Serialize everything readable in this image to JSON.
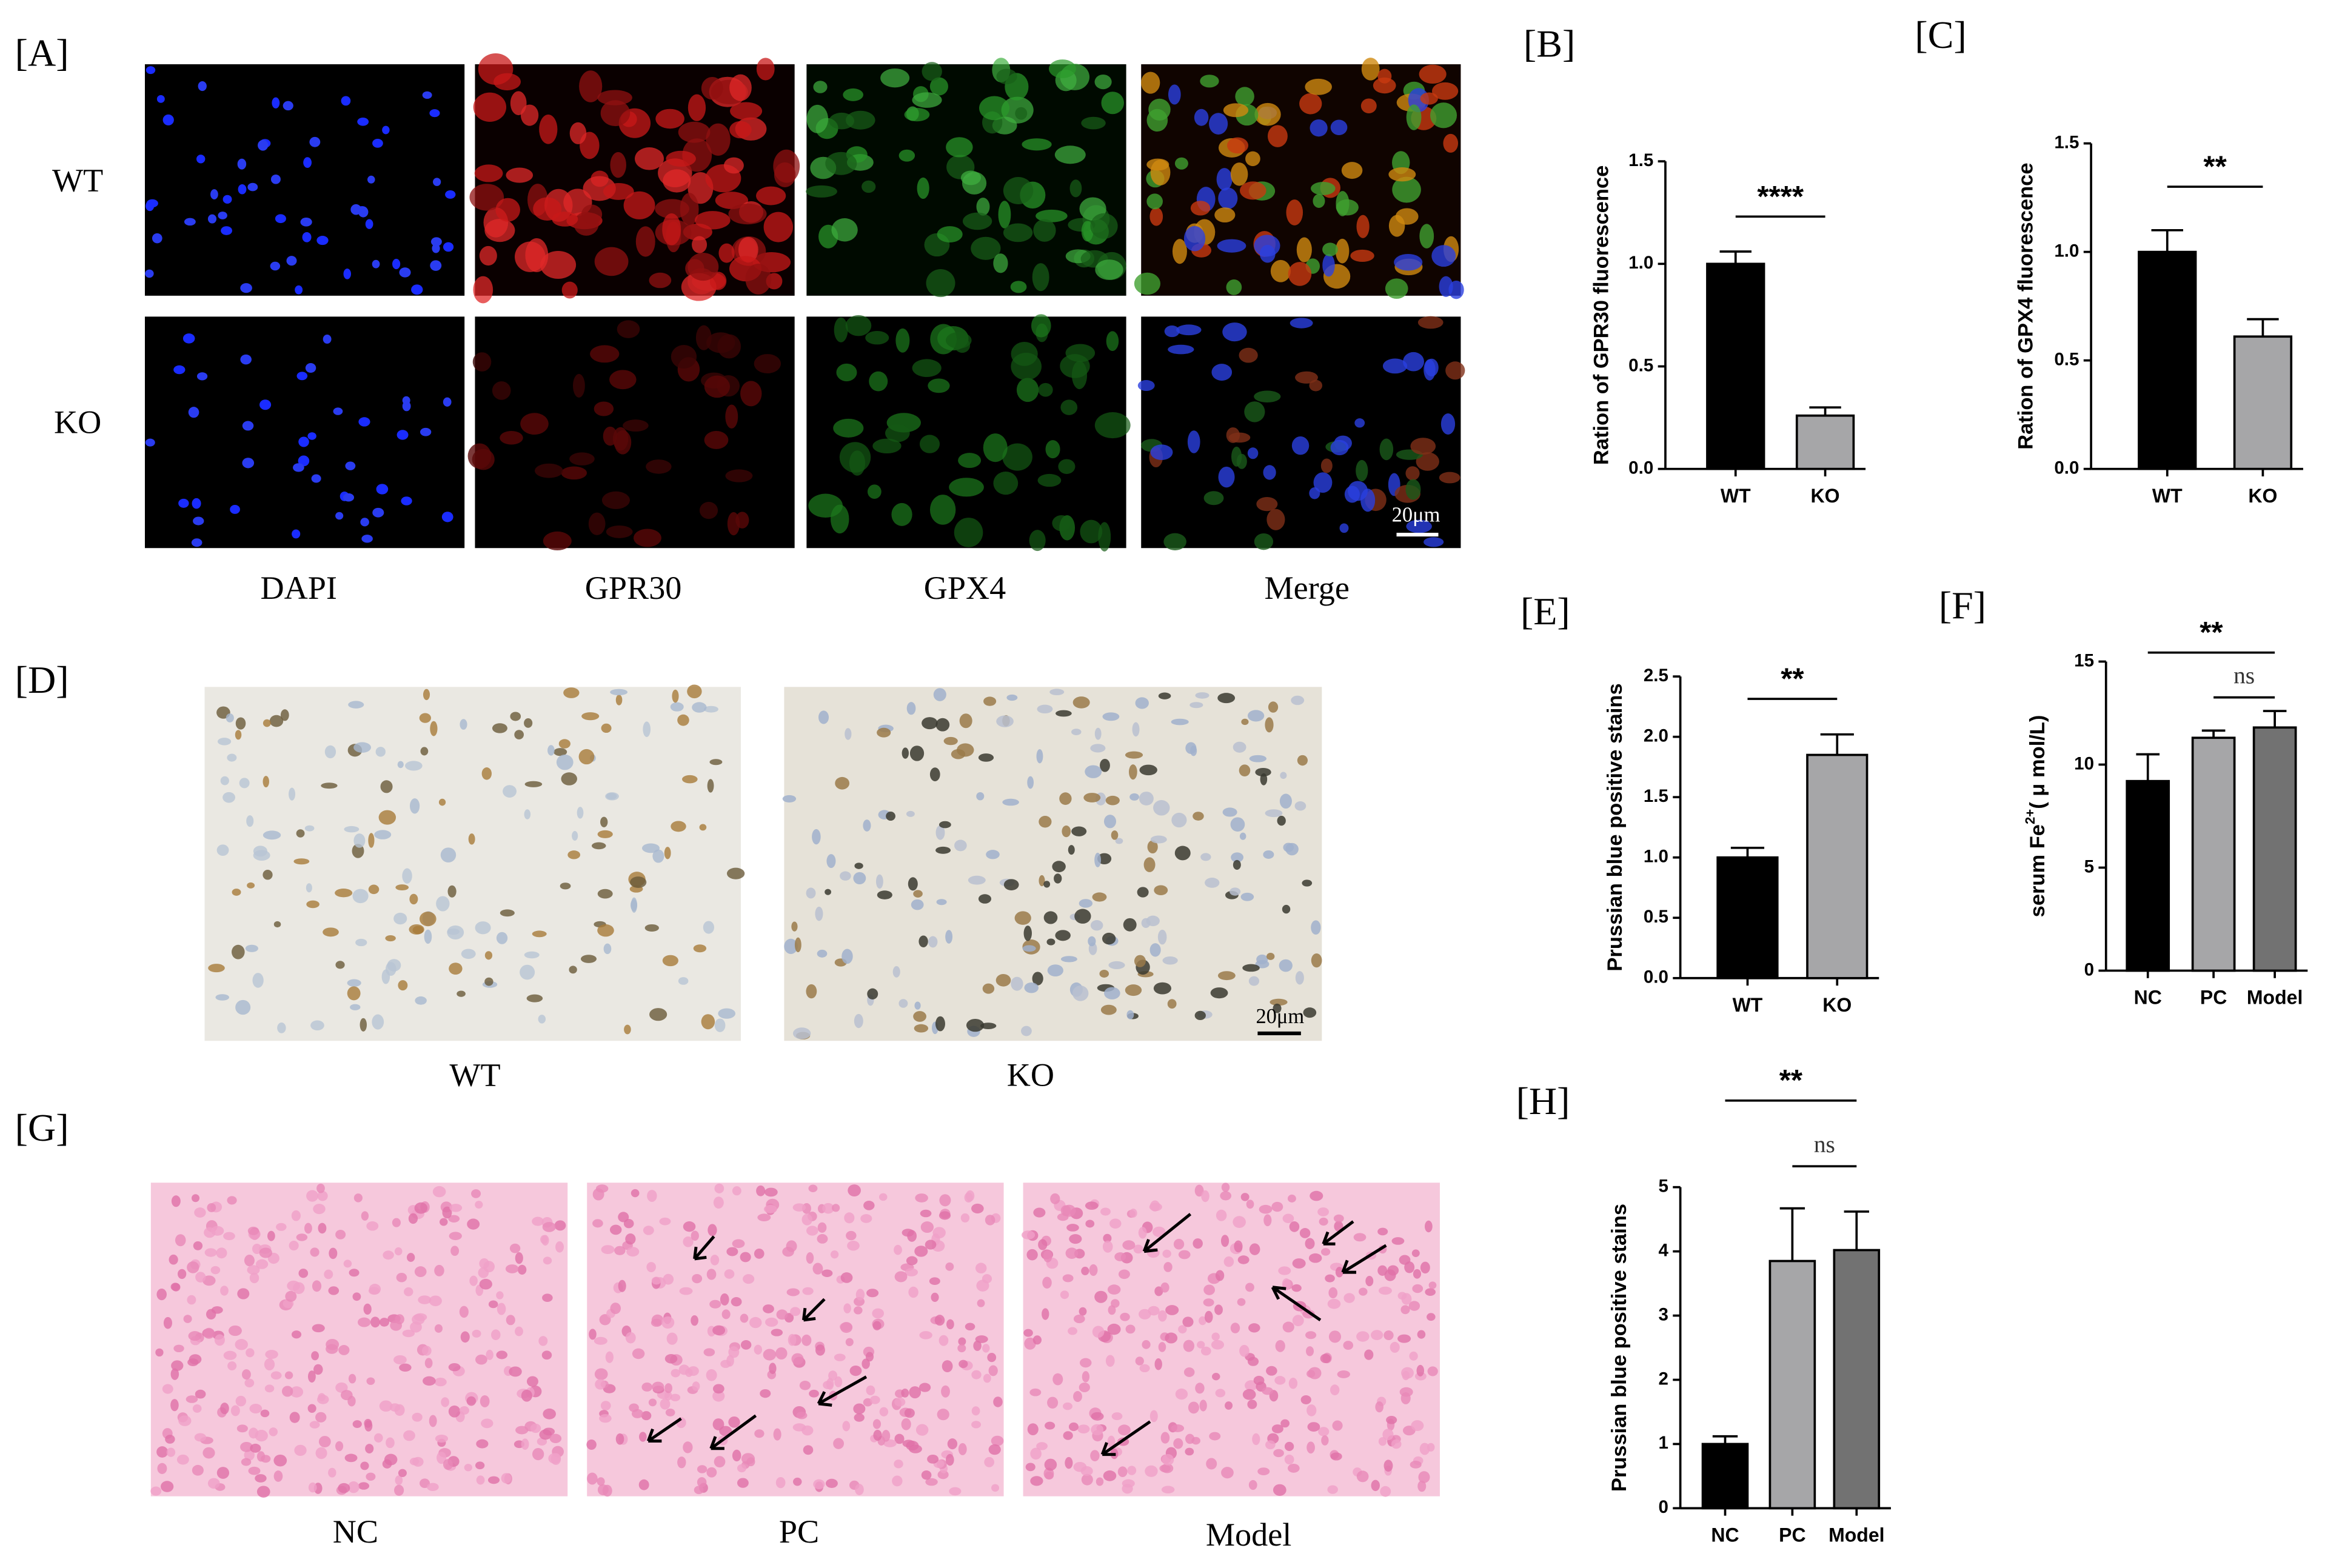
{
  "figure": {
    "A": {
      "label": "[A]",
      "rows": [
        "WT",
        "KO"
      ],
      "columns": [
        "DAPI",
        "GPR30",
        "GPX4",
        "Merge"
      ],
      "scale": "20μm"
    },
    "D": {
      "label": "[D]",
      "captions": [
        "WT",
        "KO"
      ],
      "scale": "20μm"
    },
    "G": {
      "label": "[G]",
      "captions": [
        "NC",
        "PC",
        "Model"
      ]
    }
  },
  "chart_data": [
    {
      "type": "bar",
      "panel": "[B]",
      "ylabel": "Ration of GPR30 fluorescence",
      "categories": [
        "WT",
        "KO"
      ],
      "values": [
        1.0,
        0.26
      ],
      "errors": [
        0.06,
        0.04
      ],
      "colors": [
        "#000000",
        "#a6a6a8"
      ],
      "ylim": [
        0,
        1.5
      ],
      "yticks": [
        {
          "value": 0,
          "label": "0.0"
        },
        0.5,
        {
          "value": 1,
          "label": "1.0"
        },
        1.5
      ],
      "annotations": [
        "****"
      ]
    },
    {
      "type": "bar",
      "panel": "[C]",
      "ylabel": "Ration of GPX4 fluorescence",
      "categories": [
        "WT",
        "KO"
      ],
      "values": [
        1.0,
        0.61
      ],
      "errors": [
        0.1,
        0.08
      ],
      "colors": [
        "#000000",
        "#a6a6a8"
      ],
      "ylim": [
        0,
        1.5
      ],
      "yticks": [
        {
          "value": 0,
          "label": "0.0"
        },
        0.5,
        {
          "value": 1,
          "label": "1.0"
        },
        1.5
      ],
      "annotations": [
        "**"
      ]
    },
    {
      "type": "bar",
      "panel": "[E]",
      "ylabel": "Prussian blue positive stains",
      "categories": [
        "WT",
        "KO"
      ],
      "values": [
        1.0,
        1.85
      ],
      "errors": [
        0.08,
        0.17
      ],
      "colors": [
        "#000000",
        "#a6a6a8"
      ],
      "ylim": [
        0,
        2.5
      ],
      "yticks": [
        {
          "value": 0,
          "label": "0.0"
        },
        0.5,
        {
          "value": 1,
          "label": "1.0"
        },
        1.5,
        {
          "value": 2,
          "label": "2.0"
        },
        2.5
      ],
      "annotations": [
        "**"
      ]
    },
    {
      "type": "bar",
      "panel": "[F]",
      "ylabel": [
        "serum Fe",
        "2+",
        "( μ mol/L)"
      ],
      "categories": [
        "NC",
        "PC",
        "Model"
      ],
      "values": [
        9.2,
        11.3,
        11.8
      ],
      "errors": [
        1.3,
        0.35,
        0.8
      ],
      "colors": [
        "#000000",
        "#a6a6a8",
        "#727272"
      ],
      "ylim": [
        0,
        15
      ],
      "yticks": [
        0,
        5,
        10,
        15
      ],
      "annotations": [
        "**",
        "ns"
      ]
    },
    {
      "type": "bar",
      "panel": "[H]",
      "ylabel": "Prussian blue positive stains",
      "categories": [
        "NC",
        "PC",
        "Model"
      ],
      "values": [
        1.0,
        3.85,
        4.02
      ],
      "errors": [
        0.12,
        0.82,
        0.6
      ],
      "colors": [
        "#000000",
        "#a6a6a8",
        "#727272"
      ],
      "ylim": [
        0,
        5
      ],
      "yticks": [
        0,
        1,
        2,
        3,
        4,
        5
      ],
      "annotations": [
        "**",
        "ns"
      ]
    }
  ]
}
